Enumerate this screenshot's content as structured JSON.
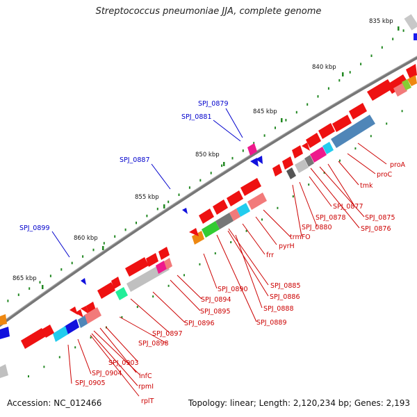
{
  "title": "Streptococcus pneumoniae JJA, complete genome",
  "accession": "Accession: NC_012466",
  "summary": "Topology: linear; Length: 2,120,234 bp; Genes: 2,193",
  "ticks": [
    "835 kbp",
    "840 kbp",
    "845 kbp",
    "850 kbp",
    "855 kbp",
    "860 kbp",
    "865 kbp"
  ],
  "blue_labels": [
    "SPJ_0879",
    "SPJ_0881",
    "SPJ_0887",
    "SPJ_0899"
  ],
  "red_labels": [
    "proA",
    "proC",
    "tmk",
    "SPJ_0877",
    "SPJ_0875",
    "SPJ_0876",
    "SPJ_0878",
    "SPJ_0880",
    "trmFO",
    "pyrH",
    "frr",
    "SPJ_0885",
    "SPJ_0886",
    "SPJ_0888",
    "SPJ_0889",
    "SPJ_0890",
    "SPJ_0894",
    "SPJ_0895",
    "SPJ_0896",
    "SPJ_0897",
    "SPJ_0898",
    "SPJ_0903",
    "SPJ_0904",
    "infC",
    "rpmI",
    "rplT",
    "SPJ_0905"
  ],
  "colors": {
    "gene_red": "#ee1111",
    "label_red": "#cc0000",
    "label_blue": "#0000cc",
    "backbone": "#777777",
    "tick_green": "#228822"
  }
}
